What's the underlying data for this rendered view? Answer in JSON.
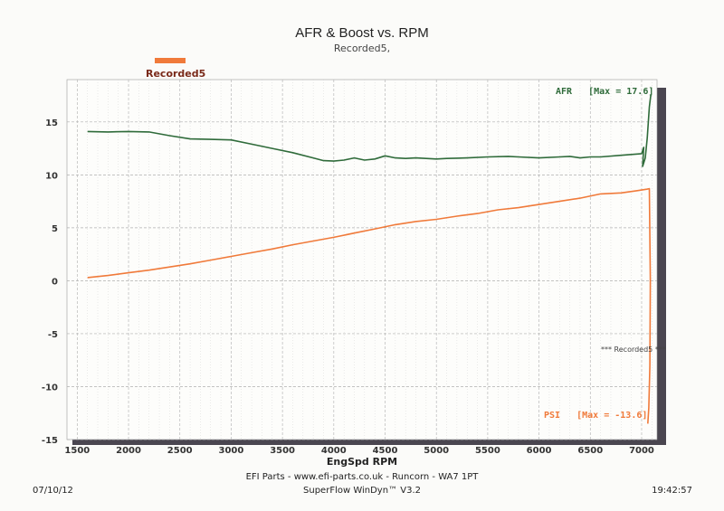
{
  "chart_data": {
    "type": "line",
    "title": "AFR & Boost vs. RPM",
    "subtitle": "Recorded5,",
    "legend": [
      {
        "label": "Recorded5",
        "color": "#f07a3a"
      }
    ],
    "xlabel": "EngSpd RPM",
    "xlim": [
      1400,
      7150
    ],
    "ylim": [
      -15,
      19
    ],
    "x_ticks": [
      "1500",
      "2000",
      "2500",
      "3000",
      "3500",
      "4000",
      "4500",
      "5000",
      "5500",
      "6000",
      "6500",
      "7000"
    ],
    "y_ticks": [
      "15",
      "10",
      "5",
      "0",
      "-5",
      "-10",
      "-15"
    ],
    "grid": true,
    "series": [
      {
        "name": "AFR",
        "color": "#2f6b3a",
        "label": "AFR   [Max = 17.6]",
        "points": [
          [
            1600,
            14.1
          ],
          [
            1800,
            14.05
          ],
          [
            2000,
            14.1
          ],
          [
            2200,
            14.05
          ],
          [
            2400,
            13.7
          ],
          [
            2600,
            13.4
          ],
          [
            2800,
            13.35
          ],
          [
            3000,
            13.3
          ],
          [
            3200,
            12.9
          ],
          [
            3400,
            12.5
          ],
          [
            3600,
            12.1
          ],
          [
            3800,
            11.6
          ],
          [
            3900,
            11.35
          ],
          [
            4000,
            11.3
          ],
          [
            4100,
            11.4
          ],
          [
            4200,
            11.6
          ],
          [
            4300,
            11.4
          ],
          [
            4400,
            11.5
          ],
          [
            4500,
            11.8
          ],
          [
            4600,
            11.6
          ],
          [
            4700,
            11.55
          ],
          [
            4800,
            11.6
          ],
          [
            5000,
            11.5
          ],
          [
            5100,
            11.55
          ],
          [
            5300,
            11.6
          ],
          [
            5500,
            11.7
          ],
          [
            5700,
            11.75
          ],
          [
            5800,
            11.7
          ],
          [
            6000,
            11.6
          ],
          [
            6200,
            11.7
          ],
          [
            6300,
            11.75
          ],
          [
            6400,
            11.6
          ],
          [
            6500,
            11.7
          ],
          [
            6600,
            11.7
          ],
          [
            6800,
            11.85
          ],
          [
            7000,
            12.0
          ],
          [
            7020,
            12.6
          ],
          [
            7010,
            10.8
          ],
          [
            7035,
            11.6
          ],
          [
            7055,
            13.5
          ],
          [
            7075,
            16.4
          ],
          [
            7090,
            17.6
          ]
        ]
      },
      {
        "name": "PSI",
        "color": "#f07a3a",
        "label": "PSI   [Max = -13.6]",
        "points": [
          [
            1600,
            0.3
          ],
          [
            1800,
            0.5
          ],
          [
            2000,
            0.75
          ],
          [
            2200,
            1.0
          ],
          [
            2400,
            1.3
          ],
          [
            2600,
            1.6
          ],
          [
            2800,
            1.95
          ],
          [
            3000,
            2.3
          ],
          [
            3200,
            2.65
          ],
          [
            3400,
            3.0
          ],
          [
            3600,
            3.4
          ],
          [
            3800,
            3.75
          ],
          [
            4000,
            4.1
          ],
          [
            4200,
            4.5
          ],
          [
            4400,
            4.9
          ],
          [
            4600,
            5.3
          ],
          [
            4800,
            5.6
          ],
          [
            5000,
            5.8
          ],
          [
            5200,
            6.1
          ],
          [
            5400,
            6.35
          ],
          [
            5600,
            6.7
          ],
          [
            5800,
            6.9
          ],
          [
            6000,
            7.2
          ],
          [
            6200,
            7.5
          ],
          [
            6400,
            7.8
          ],
          [
            6600,
            8.2
          ],
          [
            6800,
            8.3
          ],
          [
            6950,
            8.5
          ],
          [
            7050,
            8.65
          ],
          [
            7075,
            8.7
          ],
          [
            7085,
            0
          ],
          [
            7080,
            -8
          ],
          [
            7070,
            -12
          ],
          [
            7060,
            -13.5
          ]
        ]
      }
    ],
    "annotation": "*** Recorded5 ***"
  },
  "footer": {
    "date": "07/10/12",
    "time": "19:42:57",
    "line1": "EFI Parts - www.efi-parts.co.uk - Runcorn - WA7 1PT",
    "line2": "SuperFlow WinDyn™ V3.2"
  }
}
